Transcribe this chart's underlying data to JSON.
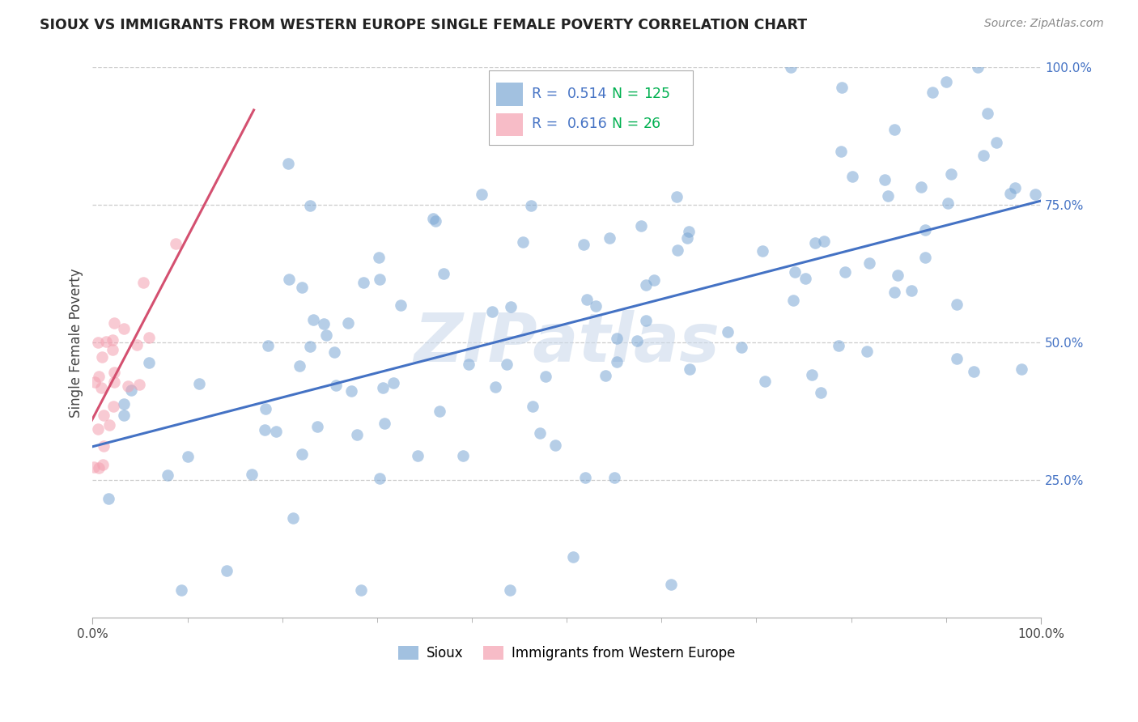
{
  "title": "SIOUX VS IMMIGRANTS FROM WESTERN EUROPE SINGLE FEMALE POVERTY CORRELATION CHART",
  "source": "Source: ZipAtlas.com",
  "ylabel": "Single Female Poverty",
  "watermark_text": "ZIPatlas",
  "xlim": [
    0,
    1.0
  ],
  "ylim": [
    0,
    1.0
  ],
  "sioux_color": "#7ba7d4",
  "immigrants_color": "#f4a0b0",
  "sioux_R": 0.514,
  "sioux_N": 125,
  "immigrants_R": 0.616,
  "immigrants_N": 26,
  "trend_blue": "#4472c4",
  "trend_pink": "#d45070",
  "legend_color": "#4472c4",
  "green_color": "#00b050",
  "background_color": "#ffffff",
  "grid_color": "#cccccc",
  "ytick_color": "#4472c4",
  "spine_color": "#aaaaaa"
}
